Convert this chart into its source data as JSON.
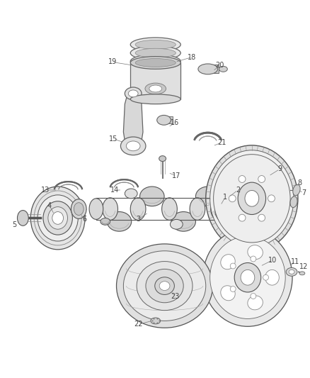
{
  "background_color": "#ffffff",
  "fig_width": 4.38,
  "fig_height": 5.33,
  "dpi": 100,
  "label_fontsize": 7.0,
  "label_color": "#444444",
  "line_color": "#777777",
  "line_width": 0.5,
  "ec": "#555555",
  "lw": 0.8
}
